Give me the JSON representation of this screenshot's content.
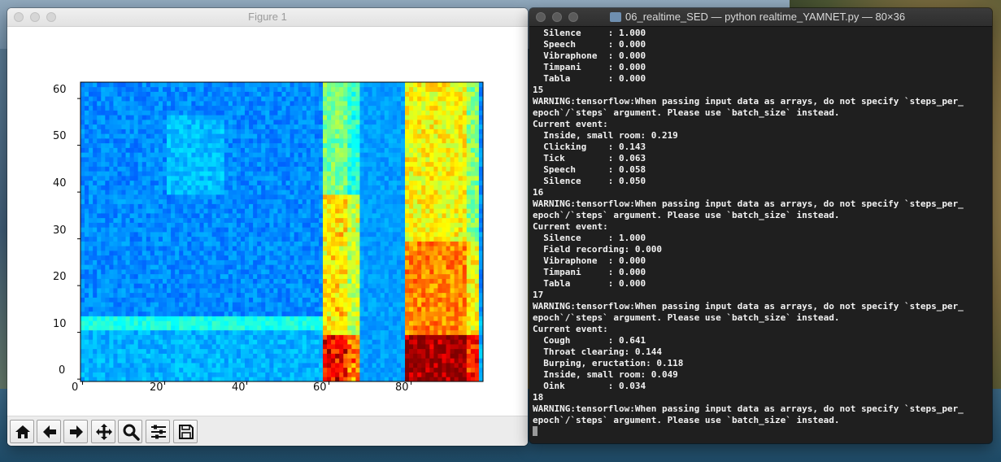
{
  "figure_window": {
    "title": "Figure 1",
    "x_ticks": [
      "0",
      "20",
      "40",
      "60",
      "80"
    ],
    "y_ticks": [
      "0",
      "10",
      "20",
      "30",
      "40",
      "50",
      "60"
    ],
    "toolbar": {
      "home": "home-icon",
      "back": "arrow-left-icon",
      "forward": "arrow-right-icon",
      "pan": "move-icon",
      "zoom": "magnifier-icon",
      "configure": "sliders-icon",
      "save": "floppy-disk-icon"
    }
  },
  "chart_data": {
    "type": "heatmap",
    "xlim": [
      0,
      97
    ],
    "ylim": [
      0,
      63
    ],
    "colormap": "jet",
    "grid": false,
    "description_bands": [
      {
        "x_range": [
          59,
          67
        ],
        "level": "mid-high"
      },
      {
        "x_range": [
          79,
          96
        ],
        "level": "high"
      }
    ]
  },
  "terminal_window": {
    "title": "06_realtime_SED — python realtime_YAMNET.py — 80×36",
    "lines": [
      "  Silence     : 1.000",
      "  Speech      : 0.000",
      "  Vibraphone  : 0.000",
      "  Timpani     : 0.000",
      "  Tabla       : 0.000",
      "15",
      "WARNING:tensorflow:When passing input data as arrays, do not specify `steps_per_",
      "epoch`/`steps` argument. Please use `batch_size` instead.",
      "Current event:",
      "  Inside, small room: 0.219",
      "  Clicking    : 0.143",
      "  Tick        : 0.063",
      "  Speech      : 0.058",
      "  Silence     : 0.050",
      "16",
      "WARNING:tensorflow:When passing input data as arrays, do not specify `steps_per_",
      "epoch`/`steps` argument. Please use `batch_size` instead.",
      "Current event:",
      "  Silence     : 1.000",
      "  Field recording: 0.000",
      "  Vibraphone  : 0.000",
      "  Timpani     : 0.000",
      "  Tabla       : 0.000",
      "17",
      "WARNING:tensorflow:When passing input data as arrays, do not specify `steps_per_",
      "epoch`/`steps` argument. Please use `batch_size` instead.",
      "Current event:",
      "  Cough       : 0.641",
      "  Throat clearing: 0.144",
      "  Burping, eructation: 0.118",
      "  Inside, small room: 0.049",
      "  Oink        : 0.034",
      "18",
      "WARNING:tensorflow:When passing input data as arrays, do not specify `steps_per_",
      "epoch`/`steps` argument. Please use `batch_size` instead."
    ]
  }
}
